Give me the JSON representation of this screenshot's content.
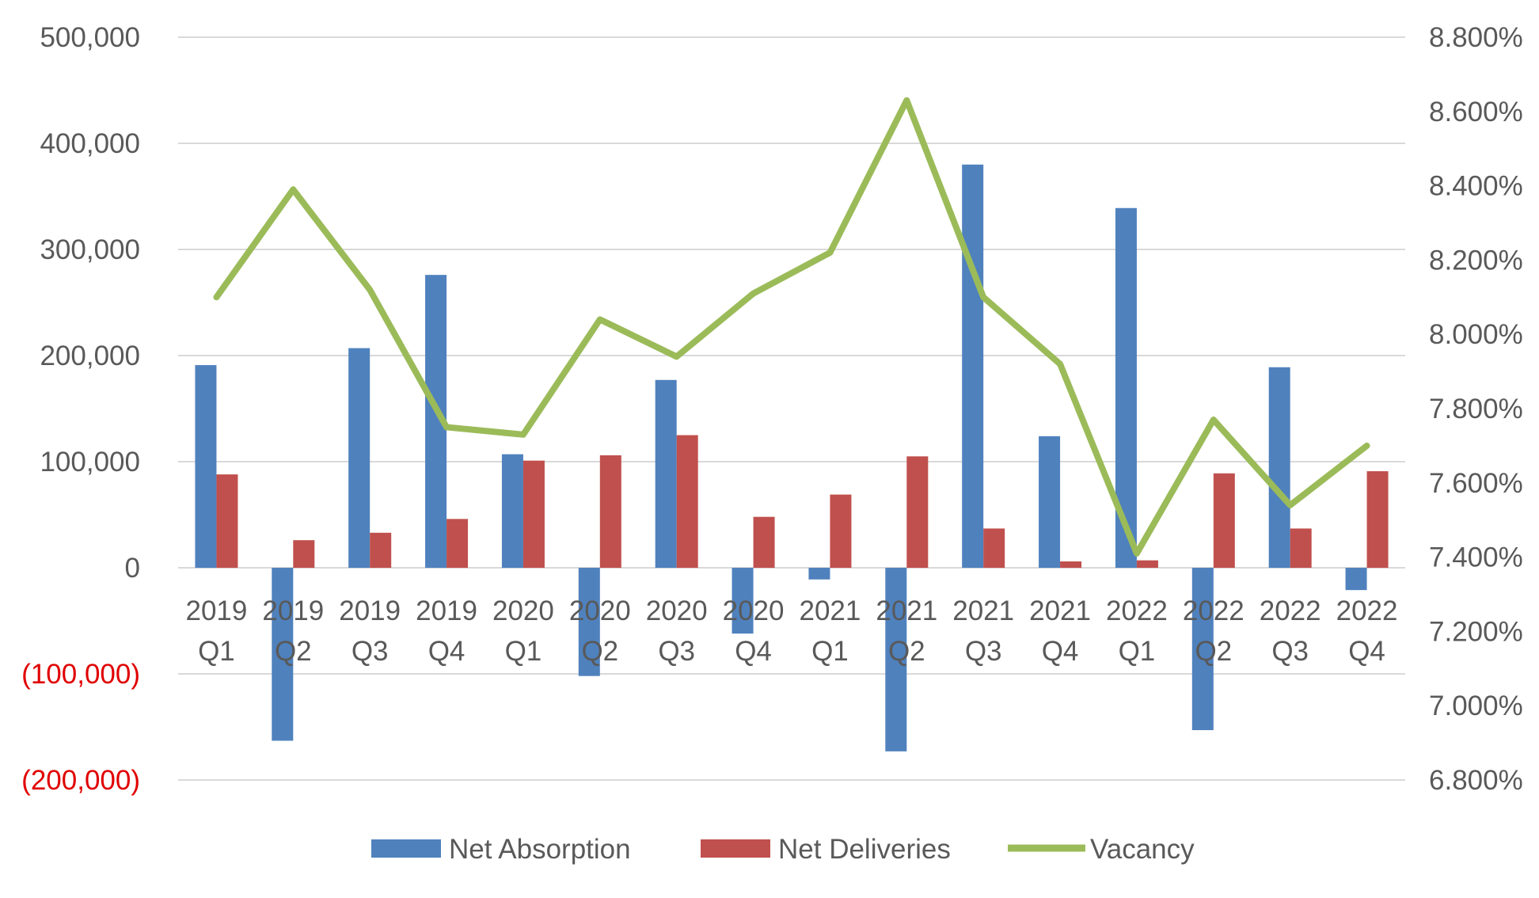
{
  "chart_data": {
    "type": "bar",
    "categories": [
      [
        "2019",
        "Q1"
      ],
      [
        "2019",
        "Q2"
      ],
      [
        "2019",
        "Q3"
      ],
      [
        "2019",
        "Q4"
      ],
      [
        "2020",
        "Q1"
      ],
      [
        "2020",
        "Q2"
      ],
      [
        "2020",
        "Q3"
      ],
      [
        "2020",
        "Q4"
      ],
      [
        "2021",
        "Q1"
      ],
      [
        "2021",
        "Q2"
      ],
      [
        "2021",
        "Q3"
      ],
      [
        "2021",
        "Q4"
      ],
      [
        "2022",
        "Q1"
      ],
      [
        "2022",
        "Q2"
      ],
      [
        "2022",
        "Q3"
      ],
      [
        "2022",
        "Q4"
      ]
    ],
    "series": [
      {
        "name": "Net Absorption",
        "type": "bar",
        "axis": "left",
        "color": "#4f81bd",
        "values": [
          191000,
          -163000,
          207000,
          276000,
          107000,
          -102000,
          177000,
          -62000,
          -11000,
          -173000,
          380000,
          124000,
          339000,
          -153000,
          189000,
          -21000
        ]
      },
      {
        "name": "Net Deliveries",
        "type": "bar",
        "axis": "left",
        "color": "#c0504d",
        "values": [
          88000,
          26000,
          33000,
          46000,
          101000,
          106000,
          125000,
          48000,
          69000,
          105000,
          37000,
          6000,
          7000,
          89000,
          37000,
          91000
        ]
      },
      {
        "name": "Vacancy",
        "type": "line",
        "axis": "right",
        "color": "#9bbb59",
        "values": [
          8.1,
          8.39,
          8.12,
          7.75,
          7.73,
          8.04,
          7.94,
          8.11,
          8.22,
          8.63,
          8.1,
          7.92,
          7.41,
          7.77,
          7.54,
          7.7
        ]
      }
    ],
    "left_axis": {
      "ylim": [
        -200000,
        500000
      ],
      "ticks": [
        500000,
        400000,
        300000,
        200000,
        100000,
        0,
        -100000,
        -200000
      ],
      "tick_labels": [
        "500,000",
        "400,000",
        "300,000",
        "200,000",
        "100,000",
        "0",
        "(100,000)",
        "(200,000)"
      ],
      "negative_label_color": "#e00000"
    },
    "right_axis": {
      "ylim": [
        6.8,
        8.8
      ],
      "ticks": [
        8.8,
        8.6,
        8.4,
        8.2,
        8.0,
        7.8,
        7.6,
        7.4,
        7.2,
        7.0,
        6.8
      ],
      "tick_labels": [
        "8.800%",
        "8.600%",
        "8.400%",
        "8.200%",
        "8.000%",
        "7.800%",
        "7.600%",
        "7.400%",
        "7.200%",
        "7.000%",
        "6.800%"
      ]
    },
    "title": "",
    "xlabel": "",
    "ylabel": "",
    "grid": true,
    "legend": {
      "position": "bottom",
      "entries": [
        "Net Absorption",
        "Net Deliveries",
        "Vacancy"
      ]
    }
  }
}
